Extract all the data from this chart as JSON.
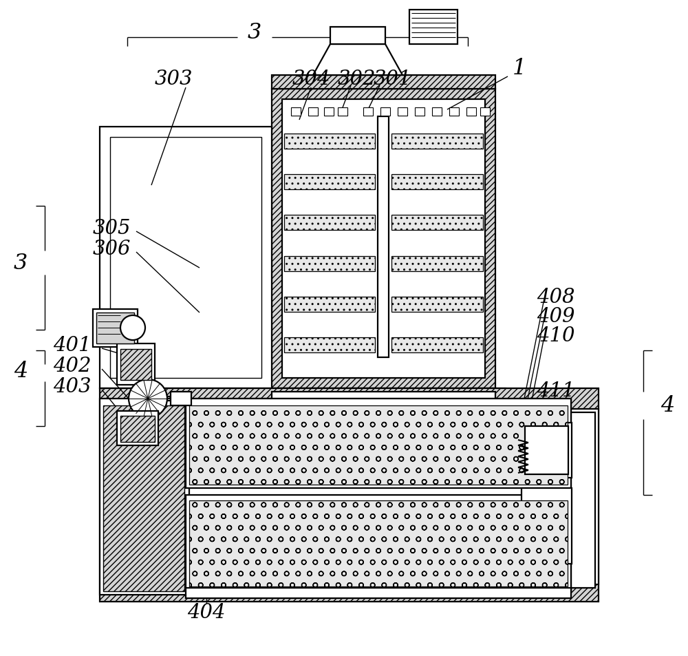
{
  "bg": "#ffffff",
  "lc": "#000000",
  "fig_w": 10.0,
  "fig_h": 9.54,
  "dpi": 100,
  "lw_main": 1.6,
  "lw_thin": 1.0,
  "font_size": 21,
  "gray_fill": "#d4d4d4",
  "light_fill": "#e8e8e8"
}
